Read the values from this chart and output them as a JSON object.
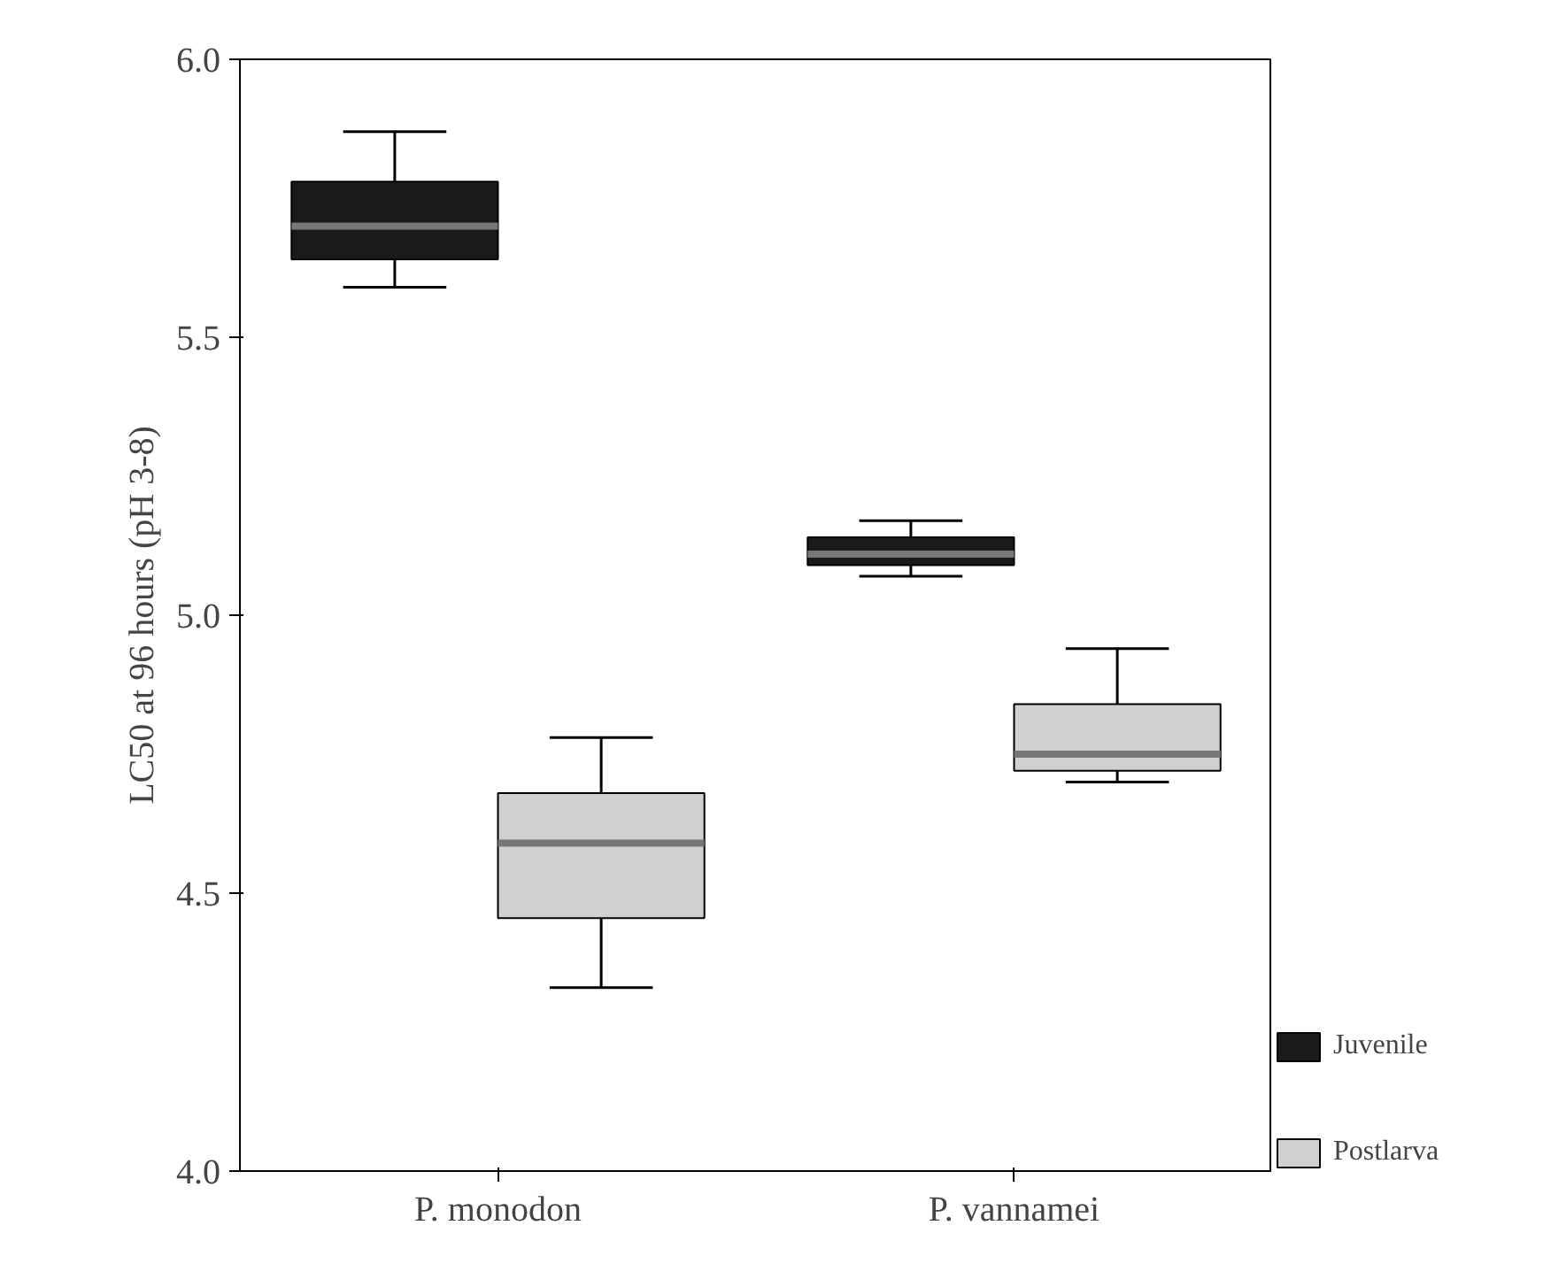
{
  "chart_data": {
    "type": "box",
    "ylabel": "LC50 at 96 hours (pH 3-8)",
    "categories": [
      "P. monodon",
      "P. vannamei"
    ],
    "series": [
      {
        "name": "Juvenile",
        "color": "#1a1a1a",
        "boxes": [
          {
            "low": 5.59,
            "q1": 5.64,
            "median": 5.7,
            "q3": 5.78,
            "high": 5.87
          },
          {
            "low": 5.07,
            "q1": 5.09,
            "median": 5.11,
            "q3": 5.14,
            "high": 5.17
          }
        ]
      },
      {
        "name": "Postlarva",
        "color": "#d0d0d0",
        "boxes": [
          {
            "low": 4.33,
            "q1": 4.455,
            "median": 4.59,
            "q3": 4.68,
            "high": 4.78
          },
          {
            "low": 4.7,
            "q1": 4.72,
            "median": 4.75,
            "q3": 4.84,
            "high": 4.94
          }
        ]
      }
    ],
    "ylim": [
      4.0,
      6.0
    ],
    "yticks": [
      {
        "value": 4.0,
        "label": "4.0"
      },
      {
        "value": 4.5,
        "label": "4.5"
      },
      {
        "value": 5.0,
        "label": "5.0"
      },
      {
        "value": 5.5,
        "label": "5.5"
      },
      {
        "value": 6.0,
        "label": "6.0"
      }
    ],
    "grid": false,
    "legend": "bottom right"
  }
}
